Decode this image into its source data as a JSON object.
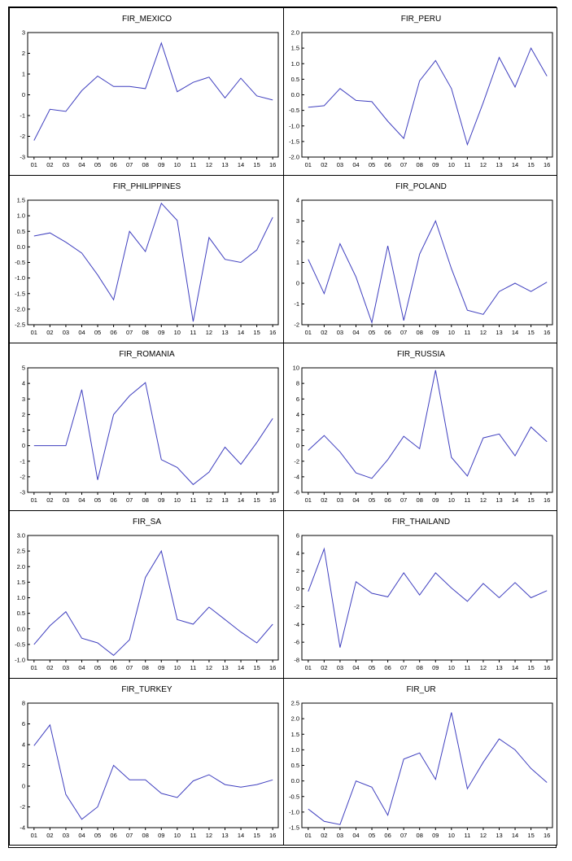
{
  "chart_data": [
    {
      "type": "line",
      "title": "FIR_MEXICO",
      "categories": [
        "01",
        "02",
        "03",
        "04",
        "05",
        "06",
        "07",
        "08",
        "09",
        "10",
        "11",
        "12",
        "13",
        "14",
        "15",
        "16"
      ],
      "yticks": [
        "3",
        "2",
        "1",
        "0",
        "-1",
        "-2",
        "-3"
      ],
      "ylim": [
        -3,
        3
      ],
      "values": [
        -2.2,
        -0.7,
        -0.8,
        0.2,
        0.9,
        0.4,
        0.4,
        0.3,
        2.5,
        0.15,
        0.6,
        0.85,
        -0.15,
        0.8,
        -0.05,
        -0.25
      ],
      "color": "#3f3fbf"
    },
    {
      "type": "line",
      "title": "FIR_PERU",
      "categories": [
        "01",
        "02",
        "03",
        "04",
        "05",
        "06",
        "07",
        "08",
        "09",
        "10",
        "11",
        "12",
        "13",
        "14",
        "15",
        "16"
      ],
      "yticks": [
        "2.0",
        "1.5",
        "1.0",
        "0.5",
        "0.0",
        "-0.5",
        "-1.0",
        "-1.5",
        "-2.0"
      ],
      "ylim": [
        -2,
        2
      ],
      "values": [
        -0.4,
        -0.35,
        0.2,
        -0.18,
        -0.22,
        -0.85,
        -1.4,
        0.45,
        1.1,
        0.2,
        -1.6,
        -0.25,
        1.2,
        0.25,
        1.5,
        0.6
      ],
      "color": "#3f3fbf"
    },
    {
      "type": "line",
      "title": "FIR_PHILIPPINES",
      "categories": [
        "01",
        "02",
        "03",
        "04",
        "05",
        "06",
        "07",
        "08",
        "09",
        "10",
        "11",
        "12",
        "13",
        "14",
        "15",
        "16"
      ],
      "yticks": [
        "1.5",
        "1.0",
        "0.5",
        "0.0",
        "-0.5",
        "-1.0",
        "-1.5",
        "-2.0",
        "-2.5"
      ],
      "ylim": [
        -2.5,
        1.5
      ],
      "values": [
        0.35,
        0.45,
        0.15,
        -0.2,
        -0.9,
        -1.7,
        0.5,
        -0.15,
        1.4,
        0.85,
        -2.4,
        0.3,
        -0.4,
        -0.5,
        -0.1,
        0.95
      ],
      "color": "#3f3fbf"
    },
    {
      "type": "line",
      "title": "FIR_POLAND",
      "categories": [
        "01",
        "02",
        "03",
        "04",
        "05",
        "06",
        "07",
        "08",
        "09",
        "10",
        "11",
        "12",
        "13",
        "14",
        "15",
        "16"
      ],
      "yticks": [
        "4",
        "3",
        "2",
        "1",
        "0",
        "-1",
        "-2"
      ],
      "ylim": [
        -2,
        4
      ],
      "values": [
        1.15,
        -0.5,
        1.9,
        0.3,
        -1.9,
        1.8,
        -1.8,
        1.4,
        3.0,
        0.7,
        -1.3,
        -1.5,
        -0.4,
        0.0,
        -0.4,
        0.05
      ],
      "color": "#3f3fbf"
    },
    {
      "type": "line",
      "title": "FIR_ROMANIA",
      "categories": [
        "01",
        "02",
        "03",
        "04",
        "05",
        "06",
        "07",
        "08",
        "09",
        "10",
        "11",
        "12",
        "13",
        "14",
        "15",
        "16"
      ],
      "yticks": [
        "5",
        "4",
        "3",
        "2",
        "1",
        "0",
        "-1",
        "-2",
        "-3"
      ],
      "ylim": [
        -3,
        5
      ],
      "values": [
        0.0,
        0.0,
        0.0,
        3.6,
        -2.2,
        2.0,
        3.2,
        4.05,
        -0.9,
        -1.4,
        -2.5,
        -1.7,
        -0.1,
        -1.2,
        0.2,
        1.75
      ],
      "color": "#3f3fbf"
    },
    {
      "type": "line",
      "title": "FIR_RUSSIA",
      "categories": [
        "01",
        "02",
        "03",
        "04",
        "05",
        "06",
        "07",
        "08",
        "09",
        "10",
        "11",
        "12",
        "13",
        "14",
        "15",
        "16"
      ],
      "yticks": [
        "10",
        "8",
        "6",
        "4",
        "2",
        "0",
        "-2",
        "-4",
        "-6"
      ],
      "ylim": [
        -6,
        10
      ],
      "values": [
        -0.6,
        1.3,
        -0.8,
        -3.5,
        -4.2,
        -1.8,
        1.2,
        -0.4,
        9.7,
        -1.5,
        -3.9,
        1.0,
        1.5,
        -1.3,
        2.4,
        0.5
      ],
      "color": "#3f3fbf"
    },
    {
      "type": "line",
      "title": "FIR_SA",
      "categories": [
        "01",
        "02",
        "03",
        "04",
        "05",
        "06",
        "07",
        "08",
        "09",
        "10",
        "11",
        "12",
        "13",
        "14",
        "15",
        "16"
      ],
      "yticks": [
        "3.0",
        "2.5",
        "2.0",
        "1.5",
        "1.0",
        "0.5",
        "0.0",
        "-0.5",
        "-1.0"
      ],
      "ylim": [
        -1,
        3
      ],
      "values": [
        -0.5,
        0.1,
        0.55,
        -0.3,
        -0.45,
        -0.85,
        -0.35,
        1.65,
        2.5,
        0.3,
        0.15,
        0.7,
        0.3,
        -0.1,
        -0.45,
        0.15
      ],
      "color": "#3f3fbf"
    },
    {
      "type": "line",
      "title": "FIR_THAILAND",
      "categories": [
        "01",
        "02",
        "03",
        "04",
        "05",
        "06",
        "07",
        "08",
        "09",
        "10",
        "11",
        "12",
        "13",
        "14",
        "15",
        "16"
      ],
      "yticks": [
        "6",
        "4",
        "2",
        "0",
        "-2",
        "-4",
        "-6",
        "-8"
      ],
      "ylim": [
        -8,
        6
      ],
      "values": [
        -0.3,
        4.5,
        -6.6,
        0.8,
        -0.5,
        -0.9,
        1.8,
        -0.7,
        1.8,
        0.1,
        -1.4,
        0.6,
        -1.0,
        0.7,
        -1.0,
        -0.2
      ],
      "color": "#3f3fbf"
    },
    {
      "type": "line",
      "title": "FIR_TURKEY",
      "categories": [
        "01",
        "02",
        "03",
        "04",
        "05",
        "06",
        "07",
        "08",
        "09",
        "10",
        "11",
        "12",
        "13",
        "14",
        "15",
        "16"
      ],
      "yticks": [
        "8",
        "6",
        "4",
        "2",
        "0",
        "-2",
        "-4"
      ],
      "ylim": [
        -4,
        8
      ],
      "values": [
        3.9,
        5.9,
        -0.8,
        -3.2,
        -2.0,
        2.0,
        0.6,
        0.6,
        -0.7,
        -1.1,
        0.5,
        1.1,
        0.15,
        -0.1,
        0.15,
        0.6
      ],
      "color": "#3f3fbf"
    },
    {
      "type": "line",
      "title": "FIR_UR",
      "categories": [
        "01",
        "02",
        "03",
        "04",
        "05",
        "06",
        "07",
        "08",
        "09",
        "10",
        "11",
        "12",
        "13",
        "14",
        "15",
        "16"
      ],
      "yticks": [
        "2.5",
        "2.0",
        "1.5",
        "1.0",
        "0.5",
        "0.0",
        "-0.5",
        "-1.0",
        "-1.5"
      ],
      "ylim": [
        -1.5,
        2.5
      ],
      "values": [
        -0.9,
        -1.3,
        -1.4,
        0.0,
        -0.2,
        -1.1,
        0.7,
        0.9,
        0.05,
        2.2,
        -0.25,
        0.6,
        1.35,
        1.0,
        0.4,
        -0.05
      ],
      "color": "#3f3fbf"
    }
  ]
}
